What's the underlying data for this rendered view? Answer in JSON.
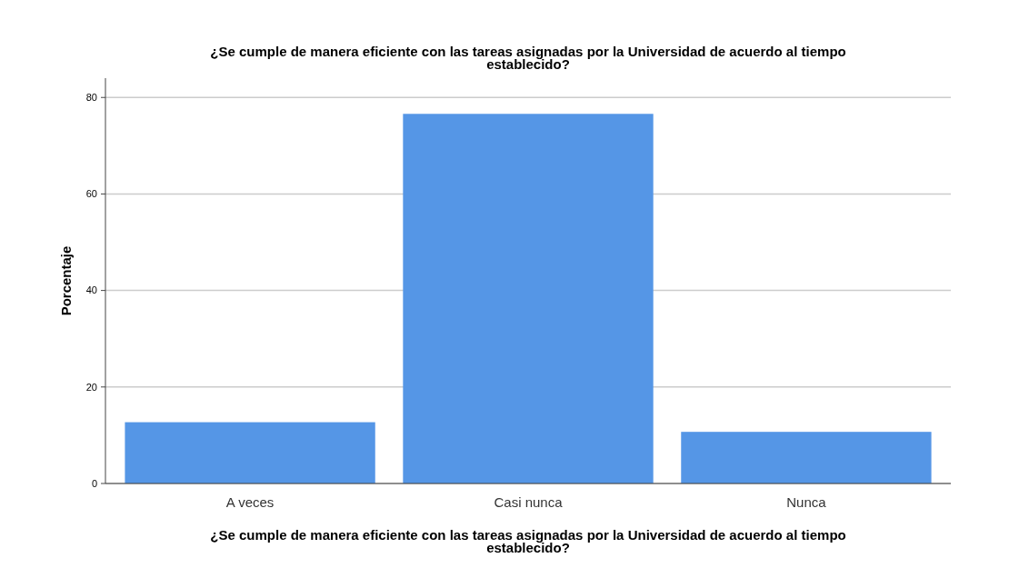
{
  "chart_data": {
    "type": "bar",
    "title": "¿Se cumple de manera eficiente con las tareas asignadas por la Universidad de acuerdo al tiempo establecido?",
    "xlabel": "¿Se cumple de manera eficiente con las tareas asignadas por la Universidad de acuerdo al tiempo establecido?",
    "ylabel": "Porcentaje",
    "categories": [
      "A veces",
      "Casi nunca",
      "Nunca"
    ],
    "values": [
      12.7,
      76.6,
      10.7
    ],
    "color": "#5596e6",
    "ylim": [
      0,
      84
    ],
    "yticks": [
      0,
      20,
      40,
      60,
      80
    ],
    "grid": "y"
  }
}
